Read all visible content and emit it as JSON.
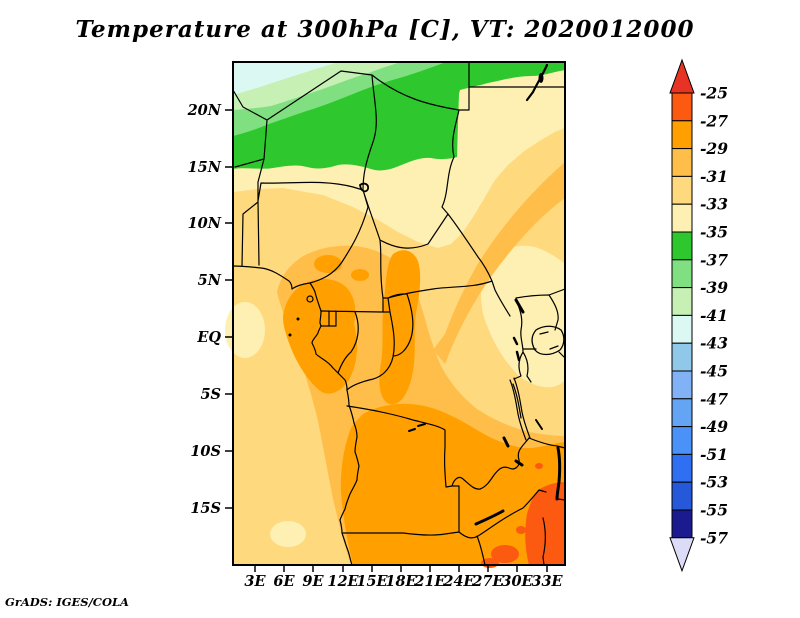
{
  "title": "Temperature at 300hPa [C], VT: 2020012000",
  "attribution": "GrADS: IGES/COLA",
  "axes": {
    "y_ticks": [
      "20N",
      "15N",
      "10N",
      "5N",
      "EQ",
      "5S",
      "10S",
      "15S"
    ],
    "x_ticks": [
      "3E",
      "6E",
      "9E",
      "12E",
      "15E",
      "18E",
      "21E",
      "24E",
      "27E",
      "30E",
      "33E"
    ]
  },
  "palette": {
    "top": "#e63323",
    "m25": "#fb5a10",
    "m27": "#ffa000",
    "m29": "#ffbe4a",
    "m31": "#fed97e",
    "m33": "#fdf0b2",
    "m35": "#2ec82e",
    "m37": "#80df80",
    "m39": "#c6f0b4",
    "m41": "#dcf8f2",
    "m43": "#8fc8e8",
    "m45": "#82b2f6",
    "m47": "#64a4f4",
    "m49": "#4a92f8",
    "m51": "#2f70f2",
    "m53": "#2658da",
    "m55": "#1b1b8f",
    "bottom": "#dcdcf8"
  },
  "colorbar": {
    "labels": [
      "-25",
      "-27",
      "-29",
      "-31",
      "-33",
      "-35",
      "-37",
      "-39",
      "-41",
      "-43",
      "-45",
      "-47",
      "-49",
      "-51",
      "-53",
      "-55",
      "-57"
    ],
    "segment_keys": [
      "m25",
      "m27",
      "m29",
      "m31",
      "m33",
      "m35",
      "m37",
      "m39",
      "m41",
      "m43",
      "m45",
      "m47",
      "m49",
      "m51",
      "m53",
      "m55"
    ],
    "top_arrow_key": "top",
    "bottom_arrow_key": "bottom"
  },
  "chart_data": {
    "type": "heatmap",
    "title": "Temperature at 300hPa [C], VT: 2020012000",
    "variable": "Temperature",
    "pressure_level": "300hPa",
    "units": "C",
    "valid_time": "2020012000",
    "x_ticks": [
      "3E",
      "6E",
      "9E",
      "12E",
      "15E",
      "18E",
      "21E",
      "24E",
      "27E",
      "30E",
      "33E"
    ],
    "y_ticks": [
      "20N",
      "15N",
      "10N",
      "5N",
      "EQ",
      "5S",
      "10S",
      "15S"
    ],
    "contour_interval_c": 2,
    "levels_c": [
      -57,
      -55,
      -53,
      -51,
      -49,
      -47,
      -45,
      -43,
      -41,
      -39,
      -37,
      -35,
      -33,
      -31,
      -29,
      -27,
      -25
    ],
    "colorbar_top_to_bottom": [
      "-25",
      "-27",
      "-29",
      "-31",
      "-33",
      "-35",
      "-37",
      "-39",
      "-41",
      "-43",
      "-45",
      "-47",
      "-49",
      "-51",
      "-53",
      "-55",
      "-57"
    ],
    "legend_position": "right vertical colorbar with out-of-range arrows",
    "grid": false,
    "pattern_summary": [
      "Coldest shading on map: pale cyan -41 to -43 C wedge at far north (Algeria/Libya, north of ~21N)",
      "Diagonal green band -35 to -41 C across the Sahara, from ~15N in the west rising to ~23N in the east",
      "Pale yellow -33 to -35 C band south of the green band and over Sudan/Uganda/Kenya",
      "Broad tan/light-orange -29 to -33 C over West/Central Africa and adjacent Atlantic",
      "Orange -27 to -29 C over Cameroon/Gabon/Congo, Angola, Zambia and the southeast",
      "Warmest cells -25 to -27 C (red-orange) near southeast corner, ~30-35E 14-20S (Mozambique/Zimbabwe)"
    ]
  }
}
